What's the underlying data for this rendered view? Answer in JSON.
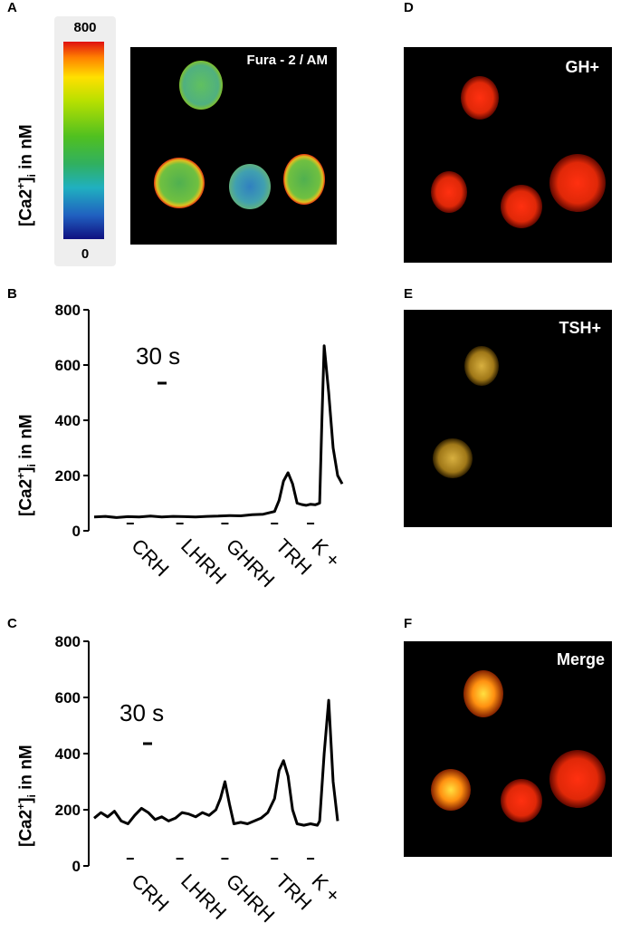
{
  "panel_letters": {
    "A": "A",
    "B": "B",
    "C": "C",
    "D": "D",
    "E": "E",
    "F": "F"
  },
  "colorbar": {
    "max_label": "800",
    "min_label": "0"
  },
  "ylabel_parts": {
    "pre": "[Ca2",
    "sup": "+",
    "post": "]",
    "sub": "i",
    "tail": " in nM"
  },
  "micrographs": {
    "A": {
      "title": "Fura - 2 / AM"
    },
    "D": {
      "title": "GH+"
    },
    "E": {
      "title": "TSH+"
    },
    "F": {
      "title": "Merge"
    }
  },
  "scale_bar_label": "30 s",
  "chart_data": [
    {
      "panel": "B",
      "type": "line",
      "ylim": [
        0,
        800
      ],
      "yticks": [
        "0",
        "200",
        "400",
        "600",
        "800"
      ],
      "stimuli": [
        "CRH",
        "LHRH",
        "GHRH",
        "TRH",
        "K +"
      ],
      "stimulus_positions": [
        0.2,
        0.42,
        0.62,
        0.84,
        1.0
      ],
      "x": [
        0,
        0.05,
        0.1,
        0.15,
        0.2,
        0.25,
        0.3,
        0.35,
        0.4,
        0.45,
        0.5,
        0.55,
        0.6,
        0.65,
        0.7,
        0.75,
        0.8,
        0.82,
        0.84,
        0.86,
        0.88,
        0.9,
        0.92,
        0.94,
        0.96,
        0.98,
        1.0,
        1.01,
        1.02,
        1.04,
        1.06,
        1.08,
        1.1
      ],
      "values": [
        50,
        52,
        48,
        51,
        50,
        53,
        50,
        52,
        51,
        50,
        52,
        53,
        55,
        54,
        58,
        60,
        70,
        110,
        180,
        210,
        170,
        100,
        95,
        92,
        96,
        94,
        100,
        400,
        670,
        500,
        300,
        200,
        170
      ]
    },
    {
      "panel": "C",
      "type": "line",
      "ylim": [
        0,
        800
      ],
      "yticks": [
        "0",
        "200",
        "400",
        "600",
        "800"
      ],
      "stimuli": [
        "CRH",
        "LHRH",
        "GHRH",
        "TRH",
        "K +"
      ],
      "stimulus_positions": [
        0.2,
        0.42,
        0.62,
        0.84,
        1.0
      ],
      "x": [
        0,
        0.03,
        0.06,
        0.09,
        0.12,
        0.15,
        0.18,
        0.21,
        0.24,
        0.27,
        0.3,
        0.33,
        0.36,
        0.39,
        0.42,
        0.45,
        0.48,
        0.51,
        0.54,
        0.56,
        0.58,
        0.6,
        0.62,
        0.65,
        0.68,
        0.71,
        0.74,
        0.77,
        0.8,
        0.82,
        0.84,
        0.86,
        0.88,
        0.9,
        0.93,
        0.96,
        0.99,
        1.0,
        1.02,
        1.04,
        1.06,
        1.08
      ],
      "values": [
        170,
        190,
        175,
        195,
        160,
        150,
        180,
        205,
        190,
        165,
        175,
        160,
        170,
        190,
        185,
        175,
        190,
        180,
        200,
        240,
        300,
        220,
        150,
        155,
        150,
        160,
        170,
        190,
        240,
        340,
        375,
        320,
        200,
        150,
        145,
        150,
        145,
        160,
        400,
        590,
        300,
        160
      ]
    }
  ]
}
